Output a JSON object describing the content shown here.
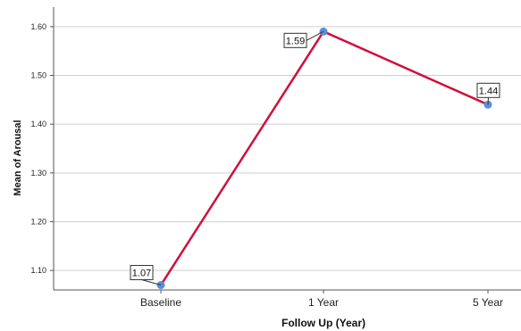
{
  "chart_data": {
    "type": "line",
    "title": "",
    "xlabel": "Follow Up (Year)",
    "ylabel": "Mean of Arousal",
    "categories": [
      "Baseline",
      "1 Year",
      "5 Year"
    ],
    "series": [
      {
        "values": [
          1.07,
          1.59,
          1.44
        ],
        "color": "#d0103a",
        "marker_color": "#5b8fd9"
      }
    ],
    "data_labels": [
      "1.07",
      "1.59",
      "1.44"
    ],
    "yticks": [
      1.1,
      1.2,
      1.3,
      1.4,
      1.5,
      1.6
    ],
    "ytick_labels": [
      "1.10",
      "1.20",
      "1.30",
      "1.40",
      "1.50",
      "1.60"
    ],
    "ylim": [
      1.06,
      1.64
    ],
    "grid": true,
    "legend": "none"
  }
}
